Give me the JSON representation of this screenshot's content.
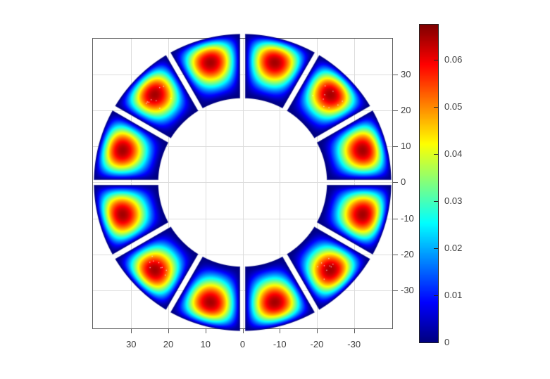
{
  "figure": {
    "kind": "matlab-style-figure",
    "title": "",
    "background": "#ffffff"
  },
  "axes": {
    "x": {
      "location": "bottom",
      "direction": "reversed",
      "range": [
        40.3,
        -40.3
      ],
      "tick_values": [
        30,
        20,
        10,
        0,
        -10,
        -20,
        -30
      ],
      "tick_labels": [
        "30",
        "20",
        "10",
        "0",
        "-10",
        "-20",
        "-30"
      ]
    },
    "y": {
      "location": "right",
      "range": [
        -40.55,
        39.95
      ],
      "tick_values": [
        30,
        20,
        10,
        0,
        -10,
        -20,
        -30
      ],
      "tick_labels": [
        "30",
        "20",
        "10",
        "0",
        "-10",
        "-20",
        "-30"
      ]
    },
    "grid": true
  },
  "colorbar": {
    "location": "right",
    "colormap": "jet",
    "min": 0,
    "max": 0.0674,
    "tick_values": [
      0,
      0.01,
      0.02,
      0.03,
      0.04,
      0.05,
      0.06
    ],
    "tick_labels": [
      "0",
      "0.01",
      "0.02",
      "0.03",
      "0.04",
      "0.05",
      "0.06"
    ]
  },
  "chart_data": {
    "type": "heatmap",
    "subtype": "ring-of-annular-sector-heatmaps",
    "title": "",
    "xlabel": "",
    "ylabel": "",
    "colormap": "jet",
    "value_range": [
      0,
      0.0674
    ],
    "num_segments": 12,
    "segment_centers_deg": [
      15,
      45,
      75,
      105,
      135,
      165,
      195,
      225,
      255,
      285,
      315,
      345
    ],
    "segment_span_deg": 30,
    "segment_gap_width_units": 1.5,
    "inner_radius_units": 23.1,
    "outer_radius_units": 40.6,
    "segment_peak_value": 0.065,
    "radial_skew_exponent": 1.45,
    "field_model": "value = peak * sin(pi * s^1.45) * sin(pi * t); s = normalized radial position 0..1, t = normalized angular position 0..1; value = 0 along every segment edge, dark-red maximum near segment middle shifted slightly outward",
    "speckled_segments_deg": [
      45,
      135,
      225,
      315
    ]
  },
  "colors": {
    "grid": "#dcdcdc",
    "axis": "#5c5c5c",
    "tick_label": "#3d3d3d",
    "colorbar_border": "#222222",
    "background": "#ffffff",
    "jet_min": "#00007f",
    "jet_max": "#7f0000"
  }
}
